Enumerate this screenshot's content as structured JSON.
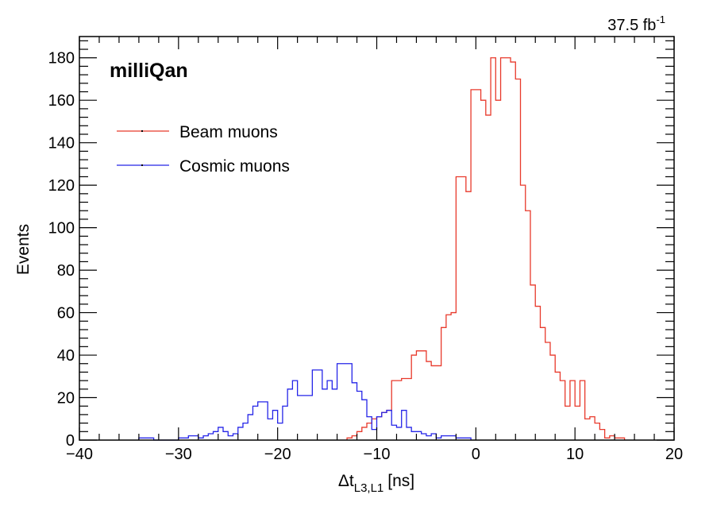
{
  "chart_data": {
    "type": "line",
    "plot_style": "step histogram",
    "brand_label": "milliQan",
    "lumi": {
      "value": "37.5 fb",
      "exponent": "-1"
    },
    "xlabel": {
      "delta": "Δ",
      "base": "t",
      "subscript": "L3,L1",
      "unit": "[ns]"
    },
    "ylabel": "Events",
    "xlim": [
      -40,
      20
    ],
    "ylim": [
      0,
      190
    ],
    "x_ticks": [
      -40,
      -30,
      -20,
      -10,
      0,
      10,
      20
    ],
    "x_tick_labels": [
      "−40",
      "−30",
      "−20",
      "−10",
      "0",
      "10",
      "20"
    ],
    "y_ticks": [
      0,
      20,
      40,
      60,
      80,
      100,
      120,
      140,
      160,
      180
    ],
    "y_tick_labels": [
      "0",
      "20",
      "40",
      "60",
      "80",
      "100",
      "120",
      "140",
      "160",
      "180"
    ],
    "bin_width": 0.5,
    "legend": {
      "position": "top-left"
    },
    "series": [
      {
        "name": "Beam muons",
        "color": "#e8392b",
        "bins": [
          [
            -13,
            1
          ],
          [
            -12.5,
            2
          ],
          [
            -12,
            4
          ],
          [
            -11.5,
            6
          ],
          [
            -11,
            8
          ],
          [
            -10.5,
            10
          ],
          [
            -10,
            11
          ],
          [
            -9.5,
            13
          ],
          [
            -9,
            14
          ],
          [
            -8.5,
            28
          ],
          [
            -8,
            28
          ],
          [
            -7.5,
            29
          ],
          [
            -7,
            29
          ],
          [
            -6.5,
            40
          ],
          [
            -6,
            42
          ],
          [
            -5.5,
            42
          ],
          [
            -5,
            37
          ],
          [
            -4.5,
            35
          ],
          [
            -4,
            35
          ],
          [
            -3.5,
            53
          ],
          [
            -3,
            59
          ],
          [
            -2.5,
            60
          ],
          [
            -2,
            124
          ],
          [
            -1.5,
            124
          ],
          [
            -1,
            117
          ],
          [
            -0.5,
            165
          ],
          [
            0,
            165
          ],
          [
            0.5,
            160
          ],
          [
            1,
            153
          ],
          [
            1.5,
            180
          ],
          [
            2,
            160
          ],
          [
            2.5,
            180
          ],
          [
            3,
            180
          ],
          [
            3.5,
            178
          ],
          [
            4,
            170
          ],
          [
            4.5,
            120
          ],
          [
            5,
            108
          ],
          [
            5.5,
            73
          ],
          [
            6,
            63
          ],
          [
            6.5,
            53
          ],
          [
            7,
            46
          ],
          [
            7.5,
            40
          ],
          [
            8,
            32
          ],
          [
            8.5,
            28
          ],
          [
            9,
            16
          ],
          [
            9.5,
            28
          ],
          [
            10,
            16
          ],
          [
            10.5,
            28
          ],
          [
            11,
            10
          ],
          [
            11.5,
            11
          ],
          [
            12,
            8
          ],
          [
            12.5,
            5
          ],
          [
            13,
            1
          ],
          [
            13.5,
            2
          ],
          [
            14,
            1
          ],
          [
            14.5,
            1
          ]
        ]
      },
      {
        "name": "Cosmic muons",
        "color": "#2525e8",
        "bins": [
          [
            -34,
            1
          ],
          [
            -33.5,
            1
          ],
          [
            -33,
            1
          ],
          [
            -30,
            1
          ],
          [
            -29.5,
            1
          ],
          [
            -29,
            2
          ],
          [
            -28.5,
            2
          ],
          [
            -28,
            1
          ],
          [
            -27.5,
            2
          ],
          [
            -27,
            3
          ],
          [
            -26.5,
            4
          ],
          [
            -26,
            6
          ],
          [
            -25.5,
            4
          ],
          [
            -25,
            2
          ],
          [
            -24.5,
            3
          ],
          [
            -24,
            6
          ],
          [
            -23.5,
            8
          ],
          [
            -23,
            12
          ],
          [
            -22.5,
            16
          ],
          [
            -22,
            18
          ],
          [
            -21.5,
            18
          ],
          [
            -21,
            10
          ],
          [
            -20.5,
            14
          ],
          [
            -20,
            8
          ],
          [
            -19.5,
            16
          ],
          [
            -19,
            24
          ],
          [
            -18.5,
            28
          ],
          [
            -18,
            21
          ],
          [
            -17.5,
            21
          ],
          [
            -17,
            21
          ],
          [
            -16.5,
            33
          ],
          [
            -16,
            33
          ],
          [
            -15.5,
            24
          ],
          [
            -15,
            28
          ],
          [
            -14.5,
            24
          ],
          [
            -14,
            36
          ],
          [
            -13.5,
            36
          ],
          [
            -13,
            36
          ],
          [
            -12.5,
            27
          ],
          [
            -12,
            23
          ],
          [
            -11.5,
            19
          ],
          [
            -11,
            11
          ],
          [
            -10.5,
            5
          ],
          [
            -10,
            11
          ],
          [
            -9.5,
            13
          ],
          [
            -9,
            14
          ],
          [
            -8.5,
            7
          ],
          [
            -8,
            6
          ],
          [
            -7.5,
            14
          ],
          [
            -7,
            6
          ],
          [
            -6.5,
            4
          ],
          [
            -6,
            4
          ],
          [
            -5.5,
            3
          ],
          [
            -5,
            2
          ],
          [
            -4.5,
            3
          ],
          [
            -4,
            1
          ],
          [
            -3.5,
            2
          ],
          [
            -3,
            2
          ],
          [
            -2.5,
            2
          ],
          [
            -2,
            1
          ],
          [
            -1.5,
            1
          ],
          [
            -1,
            1
          ]
        ]
      }
    ]
  }
}
